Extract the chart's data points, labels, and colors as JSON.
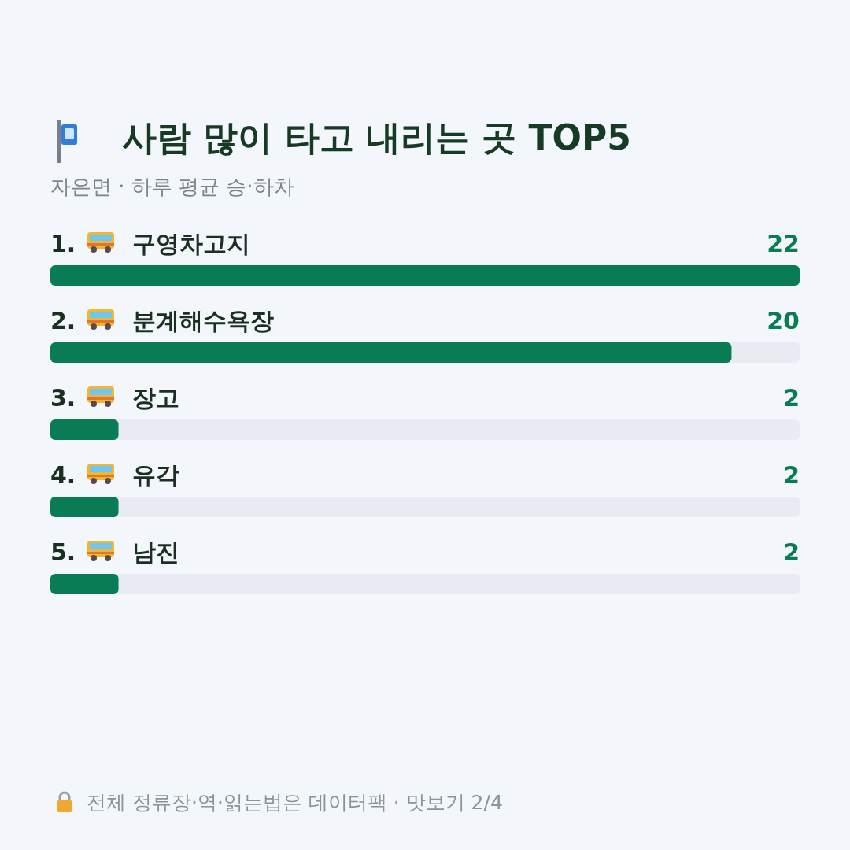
{
  "chart_data": {
    "type": "bar",
    "orientation": "horizontal",
    "title": "사람 많이 타고 내리는 곳 TOP5",
    "subtitle": "자은면 · 하루 평균 승·하차",
    "categories": [
      "1. 구영차고지",
      "2. 분계해수욕장",
      "3. 장고",
      "4. 유각",
      "5. 남진"
    ],
    "values": [
      22,
      20,
      2,
      2,
      2
    ],
    "color": "#0a7c55",
    "xlim": [
      0,
      22
    ],
    "tick_labels": false,
    "data_labels": true,
    "annotations": [
      "전체 정류장·역·읽는법은 데이터팩 · 맛보기 2/4"
    ]
  }
}
